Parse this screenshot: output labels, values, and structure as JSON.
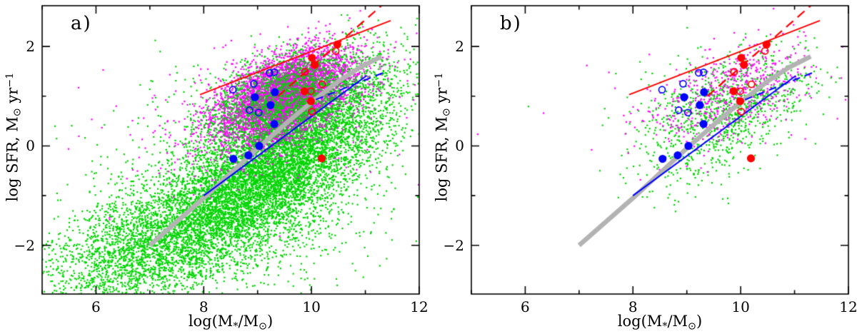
{
  "figure": {
    "background": "#ffffff",
    "panels": [
      {
        "label": "a)"
      },
      {
        "label": "b)"
      }
    ]
  },
  "labels": {
    "xlabel": {
      "pre": "log(M",
      "sub1": "*",
      "mid": "/M",
      "sub2": "⊙",
      "post": ")"
    },
    "ylabel": {
      "pre": "log SFR, M",
      "sub": "⊙",
      "mid": " yr",
      "sup": "−1"
    }
  },
  "chart_data": {
    "type": "scatter",
    "title": "",
    "xlabel": "log(M*/M⊙)",
    "ylabel": "log SFR, M⊙ yr⁻¹",
    "xlim": [
      5,
      12
    ],
    "ylim": [
      -2.98,
      2.82
    ],
    "grid": false,
    "xticks": [
      {
        "v": 6,
        "label": "6"
      },
      {
        "v": 8,
        "label": "8"
      },
      {
        "v": 10,
        "label": "10"
      },
      {
        "v": 12,
        "label": "12"
      }
    ],
    "xticks_minor": [
      5,
      7,
      9,
      11
    ],
    "yticks": [
      {
        "v": 2,
        "label": "2"
      },
      {
        "v": 0,
        "label": "0"
      },
      {
        "v": -2,
        "label": "−2"
      }
    ],
    "yticks_minor": [
      -1,
      1
    ],
    "colors": {
      "green": "#00d400",
      "magenta": "#ff00ff",
      "blue": "#0000ff",
      "red": "#ff0000",
      "gray": "#b3b3b3",
      "axis": "#000000"
    },
    "marker_sizes": {
      "dot": 2.2,
      "filled_radius": 5.6,
      "open_radius": 4.5,
      "open_stroke": 1.7
    },
    "panels": [
      {
        "label": "a)",
        "description": "full SDSS-like sample: dense green star-forming cloud + magenta cloud",
        "clouds": [
          {
            "name": "green-main-band",
            "color": "green",
            "n": 6800,
            "cx": 9.2,
            "cy": -0.55,
            "sx": 1.15,
            "sy": 0.92,
            "rho": 0.72,
            "seed": 101
          },
          {
            "name": "green-lowmass-tail",
            "color": "green",
            "n": 2000,
            "cx": 6.75,
            "cy": -2.15,
            "sx": 0.95,
            "sy": 0.72,
            "rho": 0.45,
            "seed": 102
          },
          {
            "name": "green-diffuse-low",
            "color": "green",
            "n": 1300,
            "cx": 8.7,
            "cy": -1.5,
            "sx": 1.25,
            "sy": 0.85,
            "rho": 0.35,
            "seed": 103
          },
          {
            "name": "green-sparse-mid",
            "color": "green",
            "n": 120,
            "cx": 7.6,
            "cy": 0.3,
            "sx": 1.0,
            "sy": 0.9,
            "rho": 0.2,
            "seed": 107
          },
          {
            "name": "magenta-outliers",
            "color": "magenta",
            "n": 230,
            "cx": 8.9,
            "cy": 0.7,
            "sx": 1.5,
            "sy": 0.8,
            "rho": 0.3,
            "seed": 104
          },
          {
            "name": "magenta-core",
            "color": "magenta",
            "n": 5200,
            "cx": 9.5,
            "cy": 1.0,
            "sx": 0.63,
            "sy": 0.47,
            "rho": 0.5,
            "seed": 105
          },
          {
            "name": "green-upper-overlay",
            "color": "green",
            "n": 2400,
            "cx": 9.62,
            "cy": 0.92,
            "sx": 0.82,
            "sy": 0.52,
            "rho": 0.45,
            "seed": 106
          }
        ]
      },
      {
        "label": "b)",
        "description": "sparser selected sample",
        "clouds": [
          {
            "name": "green-main",
            "color": "green",
            "n": 500,
            "cx": 9.85,
            "cy": 0.85,
            "sx": 0.8,
            "sy": 0.55,
            "rho": 0.45,
            "seed": 201
          },
          {
            "name": "green-low",
            "color": "green",
            "n": 300,
            "cx": 9.3,
            "cy": 0.1,
            "sx": 0.7,
            "sy": 0.55,
            "rho": 0.5,
            "seed": 202
          },
          {
            "name": "green-outliers",
            "color": "green",
            "n": 25,
            "cx": 8.3,
            "cy": 0.7,
            "sx": 1.2,
            "sy": 0.6,
            "rho": 0.2,
            "seed": 203
          },
          {
            "name": "magenta-outliers",
            "color": "magenta",
            "n": 60,
            "cx": 9.2,
            "cy": 0.75,
            "sx": 1.4,
            "sy": 0.75,
            "rho": 0.3,
            "seed": 204
          },
          {
            "name": "magenta-core",
            "color": "magenta",
            "n": 560,
            "cx": 9.85,
            "cy": 1.05,
            "sx": 0.7,
            "sy": 0.5,
            "rho": 0.5,
            "seed": 205
          },
          {
            "name": "green-top-sprinkle",
            "color": "green",
            "n": 250,
            "cx": 9.9,
            "cy": 1.0,
            "sx": 0.7,
            "sy": 0.45,
            "rho": 0.4,
            "seed": 206
          }
        ]
      }
    ],
    "lines": [
      {
        "name": "gray-main-sequence-track",
        "color": "gray",
        "style": "solid",
        "width": 6.5,
        "points": [
          [
            7.0,
            -2.0
          ],
          [
            8.0,
            -1.05
          ],
          [
            9.0,
            -0.05
          ],
          [
            9.6,
            0.52
          ],
          [
            10.05,
            0.92
          ],
          [
            10.5,
            1.3
          ],
          [
            10.9,
            1.58
          ],
          [
            11.3,
            1.8
          ]
        ]
      },
      {
        "name": "blue-solid-fit",
        "color": "blue",
        "style": "solid",
        "width": 2.0,
        "points": [
          [
            8.0,
            -1.0
          ],
          [
            11.02,
            1.41
          ]
        ]
      },
      {
        "name": "blue-dashed-fit",
        "color": "blue",
        "style": "dashed",
        "width": 2.0,
        "dash": [
          11,
          7
        ],
        "points": [
          [
            10.08,
            0.93
          ],
          [
            11.33,
            1.47
          ]
        ]
      },
      {
        "name": "red-solid-fit",
        "color": "red",
        "style": "solid",
        "width": 2.0,
        "points": [
          [
            7.93,
            1.03
          ],
          [
            11.47,
            2.52
          ]
        ]
      },
      {
        "name": "red-dashed-fit",
        "color": "red",
        "style": "dashed",
        "width": 2.2,
        "dash": [
          13,
          8
        ],
        "points": [
          [
            9.38,
            1.0
          ],
          [
            11.33,
            2.85
          ]
        ]
      }
    ],
    "highlight_points": {
      "blue_filled": [
        [
          8.55,
          -0.26
        ],
        [
          8.83,
          -0.19
        ],
        [
          9.03,
          0.0
        ],
        [
          8.95,
          0.98
        ],
        [
          9.32,
          1.08
        ],
        [
          9.24,
          0.82
        ],
        [
          9.31,
          0.44
        ]
      ],
      "blue_open": [
        [
          8.54,
          1.13
        ],
        [
          8.93,
          1.25
        ],
        [
          9.22,
          1.47
        ],
        [
          9.31,
          1.48
        ],
        [
          8.85,
          0.72
        ],
        [
          9.02,
          0.67
        ]
      ],
      "red_filled": [
        [
          10.48,
          2.04
        ],
        [
          10.01,
          1.77
        ],
        [
          10.06,
          1.63
        ],
        [
          9.87,
          1.1
        ],
        [
          9.99,
          0.9
        ],
        [
          10.19,
          -0.25
        ]
      ],
      "red_open": [
        [
          10.45,
          1.91
        ],
        [
          9.88,
          1.49
        ],
        [
          10.2,
          1.24
        ],
        [
          9.99,
          1.1
        ],
        [
          10.01,
          0.69
        ]
      ]
    }
  }
}
